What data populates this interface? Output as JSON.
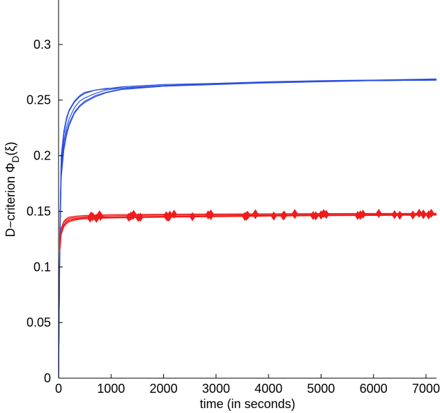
{
  "chart_data": {
    "type": "line",
    "title": "",
    "xlabel": "time (in seconds)",
    "ylabel": "D−criterion  Φ",
    "ylabel_subscript": "D",
    "ylabel_suffix": "(ξ)",
    "xlim": [
      0,
      7200
    ],
    "ylim": [
      0,
      0.34
    ],
    "xticks": [
      0,
      1000,
      2000,
      3000,
      4000,
      5000,
      6000,
      7000
    ],
    "xtick_labels": [
      "0",
      "1000",
      "2000",
      "3000",
      "4000",
      "5000",
      "6000",
      "7000"
    ],
    "yticks": [
      0,
      0.05,
      0.1,
      0.15,
      0.2,
      0.25,
      0.3
    ],
    "ytick_labels": [
      "0",
      "0.05",
      "0.1",
      "0.15",
      "0.2",
      "0.25",
      "0.3"
    ],
    "grid": false,
    "legend": "none",
    "colors": {
      "blue": "#2b4fe0",
      "red": "#ee1c1c",
      "axis": "#000000"
    },
    "series": [
      {
        "color": "#2b4fe0",
        "marker": "none",
        "x": [
          0,
          25,
          50,
          100,
          150,
          200,
          300,
          400,
          500,
          700,
          900,
          1200,
          1600,
          2000,
          3000,
          4000,
          5000,
          6000,
          7200
        ],
        "y": [
          0.0,
          0.13,
          0.195,
          0.219,
          0.232,
          0.24,
          0.248,
          0.253,
          0.256,
          0.259,
          0.26,
          0.262,
          0.263,
          0.264,
          0.265,
          0.2665,
          0.2675,
          0.268,
          0.269
        ]
      },
      {
        "color": "#2b4fe0",
        "marker": "none",
        "x": [
          0,
          25,
          50,
          100,
          150,
          200,
          300,
          400,
          500,
          700,
          900,
          1200,
          1600,
          2000,
          3000,
          4000,
          5000,
          6000,
          7200
        ],
        "y": [
          0.0,
          0.13,
          0.19,
          0.213,
          0.225,
          0.233,
          0.243,
          0.249,
          0.252,
          0.256,
          0.259,
          0.261,
          0.262,
          0.263,
          0.265,
          0.266,
          0.267,
          0.2675,
          0.268
        ]
      },
      {
        "color": "#2b4fe0",
        "marker": "none",
        "x": [
          0,
          25,
          50,
          100,
          150,
          200,
          300,
          400,
          500,
          700,
          900,
          1200,
          1600,
          2000,
          3000,
          4000,
          5000,
          6000,
          7200
        ],
        "y": [
          0.0,
          0.125,
          0.185,
          0.208,
          0.221,
          0.229,
          0.239,
          0.245,
          0.249,
          0.254,
          0.257,
          0.26,
          0.2615,
          0.2625,
          0.2645,
          0.266,
          0.267,
          0.2675,
          0.268
        ]
      },
      {
        "color": "#2b4fe0",
        "marker": "none",
        "x": [
          0,
          25,
          50,
          100,
          150,
          200,
          300,
          400,
          500,
          700,
          900,
          1200,
          1600,
          2000,
          3000,
          4000,
          5000,
          6000,
          7200
        ],
        "y": [
          0.0,
          0.135,
          0.2,
          0.222,
          0.234,
          0.241,
          0.249,
          0.254,
          0.257,
          0.259,
          0.2605,
          0.261,
          0.262,
          0.263,
          0.2645,
          0.266,
          0.267,
          0.2675,
          0.268
        ]
      },
      {
        "color": "#2b4fe0",
        "marker": "none",
        "x": [
          0,
          25,
          50,
          100,
          150,
          200,
          300,
          400,
          500,
          700,
          900,
          1200,
          1600,
          2000,
          3000,
          4000,
          5000,
          6000,
          7200
        ],
        "y": [
          0.0,
          0.12,
          0.18,
          0.205,
          0.218,
          0.227,
          0.238,
          0.244,
          0.248,
          0.253,
          0.2565,
          0.2595,
          0.261,
          0.2625,
          0.264,
          0.2655,
          0.2665,
          0.2675,
          0.2685
        ]
      },
      {
        "color": "#ee1c1c",
        "marker": "diamond",
        "x": [
          25,
          50,
          100,
          150,
          200,
          300,
          400,
          500,
          600,
          800,
          1000,
          1400,
          2000,
          3000,
          4000,
          5000,
          6000,
          7200
        ],
        "y": [
          0.117,
          0.132,
          0.138,
          0.141,
          0.1425,
          0.1435,
          0.144,
          0.1445,
          0.1448,
          0.145,
          0.145,
          0.1452,
          0.1455,
          0.146,
          0.1462,
          0.1465,
          0.1468,
          0.147
        ],
        "marker_x": [
          650,
          800,
          1380,
          2050,
          2900,
          3600,
          4300,
          5000,
          5750,
          6400,
          6950
        ],
        "marker_y": [
          0.1452,
          0.1455,
          0.1458,
          0.146,
          0.1462,
          0.1465,
          0.1465,
          0.1467,
          0.1468,
          0.147,
          0.147
        ]
      },
      {
        "color": "#ee1c1c",
        "marker": "diamond",
        "x": [
          25,
          50,
          100,
          150,
          200,
          300,
          400,
          500,
          600,
          800,
          1000,
          1400,
          2000,
          3000,
          4000,
          5000,
          6000,
          7200
        ],
        "y": [
          0.118,
          0.134,
          0.14,
          0.1425,
          0.1437,
          0.1445,
          0.145,
          0.1453,
          0.1455,
          0.1458,
          0.146,
          0.1462,
          0.1465,
          0.1468,
          0.147,
          0.1472,
          0.1474,
          0.1476
        ],
        "marker_x": [
          620,
          1420,
          2120,
          2850,
          3750,
          4500,
          5100,
          5800,
          6950
        ],
        "marker_y": [
          0.1458,
          0.1463,
          0.1466,
          0.1468,
          0.147,
          0.1472,
          0.1472,
          0.1474,
          0.1476
        ]
      },
      {
        "color": "#ee1c1c",
        "marker": "diamond",
        "x": [
          25,
          50,
          100,
          150,
          200,
          300,
          400,
          500,
          600,
          800,
          1000,
          1400,
          2000,
          3000,
          4000,
          5000,
          6000,
          7200
        ],
        "y": [
          0.116,
          0.13,
          0.137,
          0.14,
          0.1415,
          0.1428,
          0.1433,
          0.1437,
          0.144,
          0.1443,
          0.1445,
          0.1447,
          0.145,
          0.1455,
          0.146,
          0.1463,
          0.1465,
          0.1468
        ],
        "marker_x": [
          600,
          1340,
          1560,
          2070,
          2550,
          3580,
          4280,
          4850,
          5750,
          6750,
          7050
        ],
        "marker_y": [
          0.144,
          0.1447,
          0.1448,
          0.145,
          0.1452,
          0.1457,
          0.146,
          0.1462,
          0.1465,
          0.1467,
          0.1468
        ]
      },
      {
        "color": "#ee1c1c",
        "marker": "diamond",
        "x": [
          25,
          50,
          100,
          150,
          200,
          300,
          400,
          500,
          600,
          800,
          1000,
          1400,
          2000,
          3000,
          4000,
          5000,
          6000,
          7200
        ],
        "y": [
          0.119,
          0.135,
          0.141,
          0.1435,
          0.1448,
          0.1455,
          0.146,
          0.1462,
          0.1465,
          0.1468,
          0.147,
          0.1472,
          0.1474,
          0.1476,
          0.1478,
          0.148,
          0.1481,
          0.1482
        ],
        "marker_x": [
          780,
          1430,
          2200,
          2900,
          3750,
          4500,
          5050,
          6100,
          6870,
          7100
        ],
        "marker_y": [
          0.1468,
          0.1472,
          0.1474,
          0.1476,
          0.1478,
          0.148,
          0.148,
          0.1481,
          0.1482,
          0.1482
        ]
      },
      {
        "color": "#ee1c1c",
        "marker": "diamond",
        "x": [
          25,
          50,
          100,
          150,
          200,
          300,
          400,
          500,
          600,
          800,
          1000,
          1400,
          2000,
          3000,
          4000,
          5000,
          6000,
          7200
        ],
        "y": [
          0.115,
          0.129,
          0.136,
          0.139,
          0.1405,
          0.142,
          0.1428,
          0.1433,
          0.1436,
          0.1438,
          0.144,
          0.1443,
          0.1447,
          0.1452,
          0.1457,
          0.146,
          0.1463,
          0.1466
        ],
        "marker_x": [
          720,
          1520,
          2100,
          3550,
          4100,
          4900,
          5700,
          6500
        ],
        "marker_y": [
          0.1437,
          0.1444,
          0.1447,
          0.1454,
          0.1458,
          0.146,
          0.1463,
          0.1465
        ]
      }
    ]
  }
}
